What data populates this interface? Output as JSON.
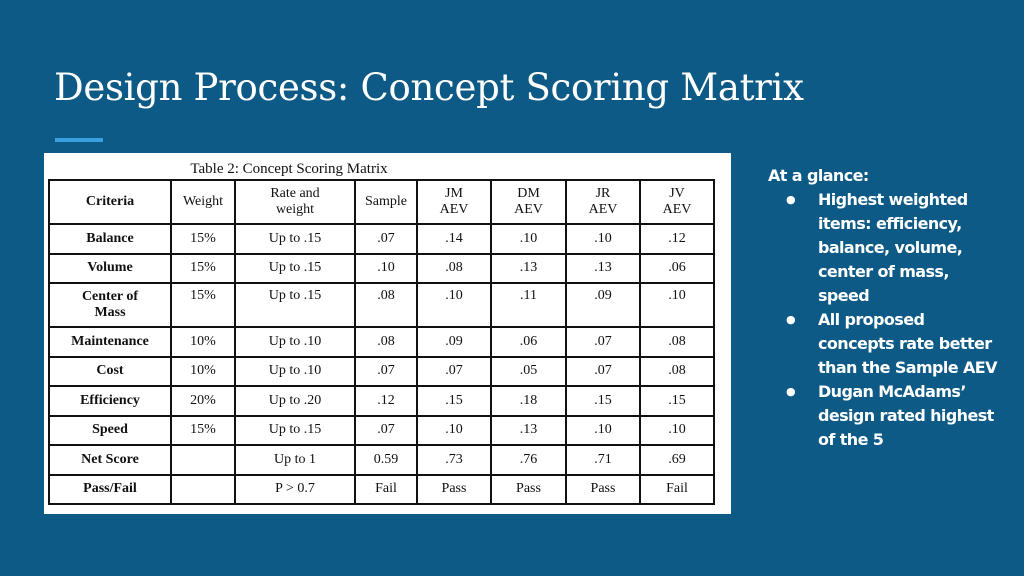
{
  "slide": {
    "title": "Design Process: Concept Scoring Matrix",
    "accent_color": "#3aa0e0",
    "background_color": "#0e5a86"
  },
  "table": {
    "caption": "Table 2: Concept Scoring Matrix",
    "headers": [
      [
        "Criteria"
      ],
      [
        "Weight"
      ],
      [
        "Rate and",
        "weight"
      ],
      [
        "Sample"
      ],
      [
        "JM",
        "AEV"
      ],
      [
        "DM",
        "AEV"
      ],
      [
        "JR",
        "AEV"
      ],
      [
        "JV",
        "AEV"
      ]
    ],
    "rows": [
      {
        "criteria": [
          "Balance"
        ],
        "weight": "15%",
        "rate": "Up to .15",
        "sample": ".07",
        "jm": ".14",
        "dm": ".10",
        "jr": ".10",
        "jv": ".12"
      },
      {
        "criteria": [
          "Volume"
        ],
        "weight": "15%",
        "rate": "Up to .15",
        "sample": ".10",
        "jm": ".08",
        "dm": ".13",
        "jr": ".13",
        "jv": ".06"
      },
      {
        "criteria": [
          "Center of",
          "Mass"
        ],
        "weight": "15%",
        "rate": "Up to .15",
        "sample": ".08",
        "jm": ".10",
        "dm": ".11",
        "jr": ".09",
        "jv": ".10"
      },
      {
        "criteria": [
          "Maintenance"
        ],
        "weight": "10%",
        "rate": "Up to .10",
        "sample": ".08",
        "jm": ".09",
        "dm": ".06",
        "jr": ".07",
        "jv": ".08"
      },
      {
        "criteria": [
          "Cost"
        ],
        "weight": "10%",
        "rate": "Up to .10",
        "sample": ".07",
        "jm": ".07",
        "dm": ".05",
        "jr": ".07",
        "jv": ".08"
      },
      {
        "criteria": [
          "Efficiency"
        ],
        "weight": "20%",
        "rate": "Up to .20",
        "sample": ".12",
        "jm": ".15",
        "dm": ".18",
        "jr": ".15",
        "jv": ".15"
      },
      {
        "criteria": [
          "Speed"
        ],
        "weight": "15%",
        "rate": "Up to .15",
        "sample": ".07",
        "jm": ".10",
        "dm": ".13",
        "jr": ".10",
        "jv": ".10"
      },
      {
        "criteria": [
          "Net Score"
        ],
        "weight": "",
        "rate": "Up to 1",
        "sample": "0.59",
        "jm": ".73",
        "dm": ".76",
        "jr": ".71",
        "jv": ".69"
      },
      {
        "criteria": [
          "Pass/Fail"
        ],
        "weight": "",
        "rate": "P > 0.7",
        "sample": "Fail",
        "jm": "Pass",
        "dm": "Pass",
        "jr": "Pass",
        "jv": "Fail"
      }
    ]
  },
  "glance": {
    "heading": "At a glance:",
    "bullet_glyph": "●",
    "items": [
      "Highest weighted items: efficiency, balance, volume, center of mass, speed",
      "All proposed concepts rate better than the Sample AEV",
      "Dugan McAdams’ design rated highest of the 5"
    ]
  }
}
